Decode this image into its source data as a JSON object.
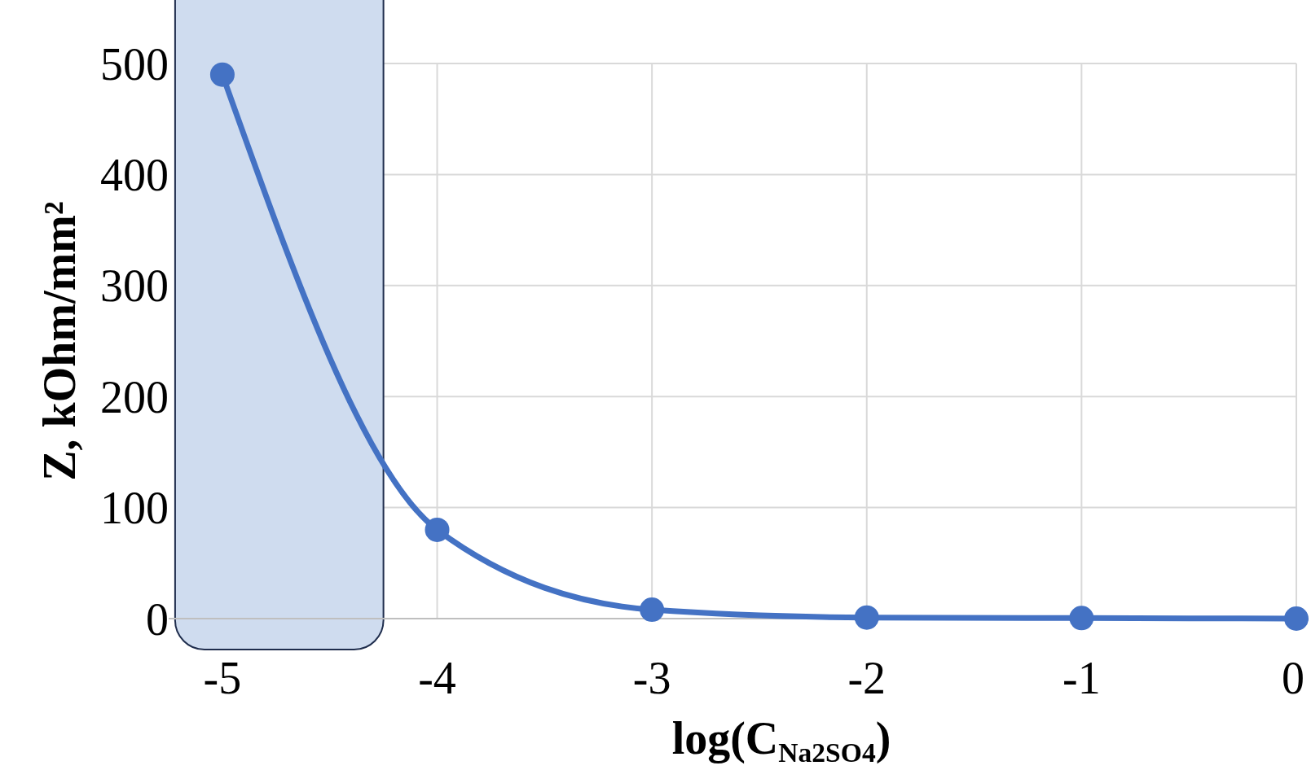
{
  "chart_data": {
    "type": "line",
    "xlabel": "log(C$_{Na2SO4}$)",
    "ylabel": "Z, kOhm/mm²",
    "x": [
      -5,
      -4,
      -3,
      -2,
      -1,
      0
    ],
    "series": [
      {
        "color": "#4472c4",
        "values": [
          490,
          80,
          8,
          1,
          0.5,
          0
        ]
      }
    ],
    "xlim": [
      -5.25,
      0
    ],
    "xticks": [
      -5,
      -4,
      -3,
      -2,
      -1,
      0
    ],
    "ylim": [
      0,
      500
    ],
    "yticks": [
      0,
      100,
      200,
      300,
      400,
      500
    ],
    "bands": [
      {
        "axis": "x",
        "from": -5.22,
        "to": -4.25,
        "color": "#cfdcef"
      }
    ],
    "grid": true,
    "marker": "circle",
    "line_style": "solid"
  }
}
